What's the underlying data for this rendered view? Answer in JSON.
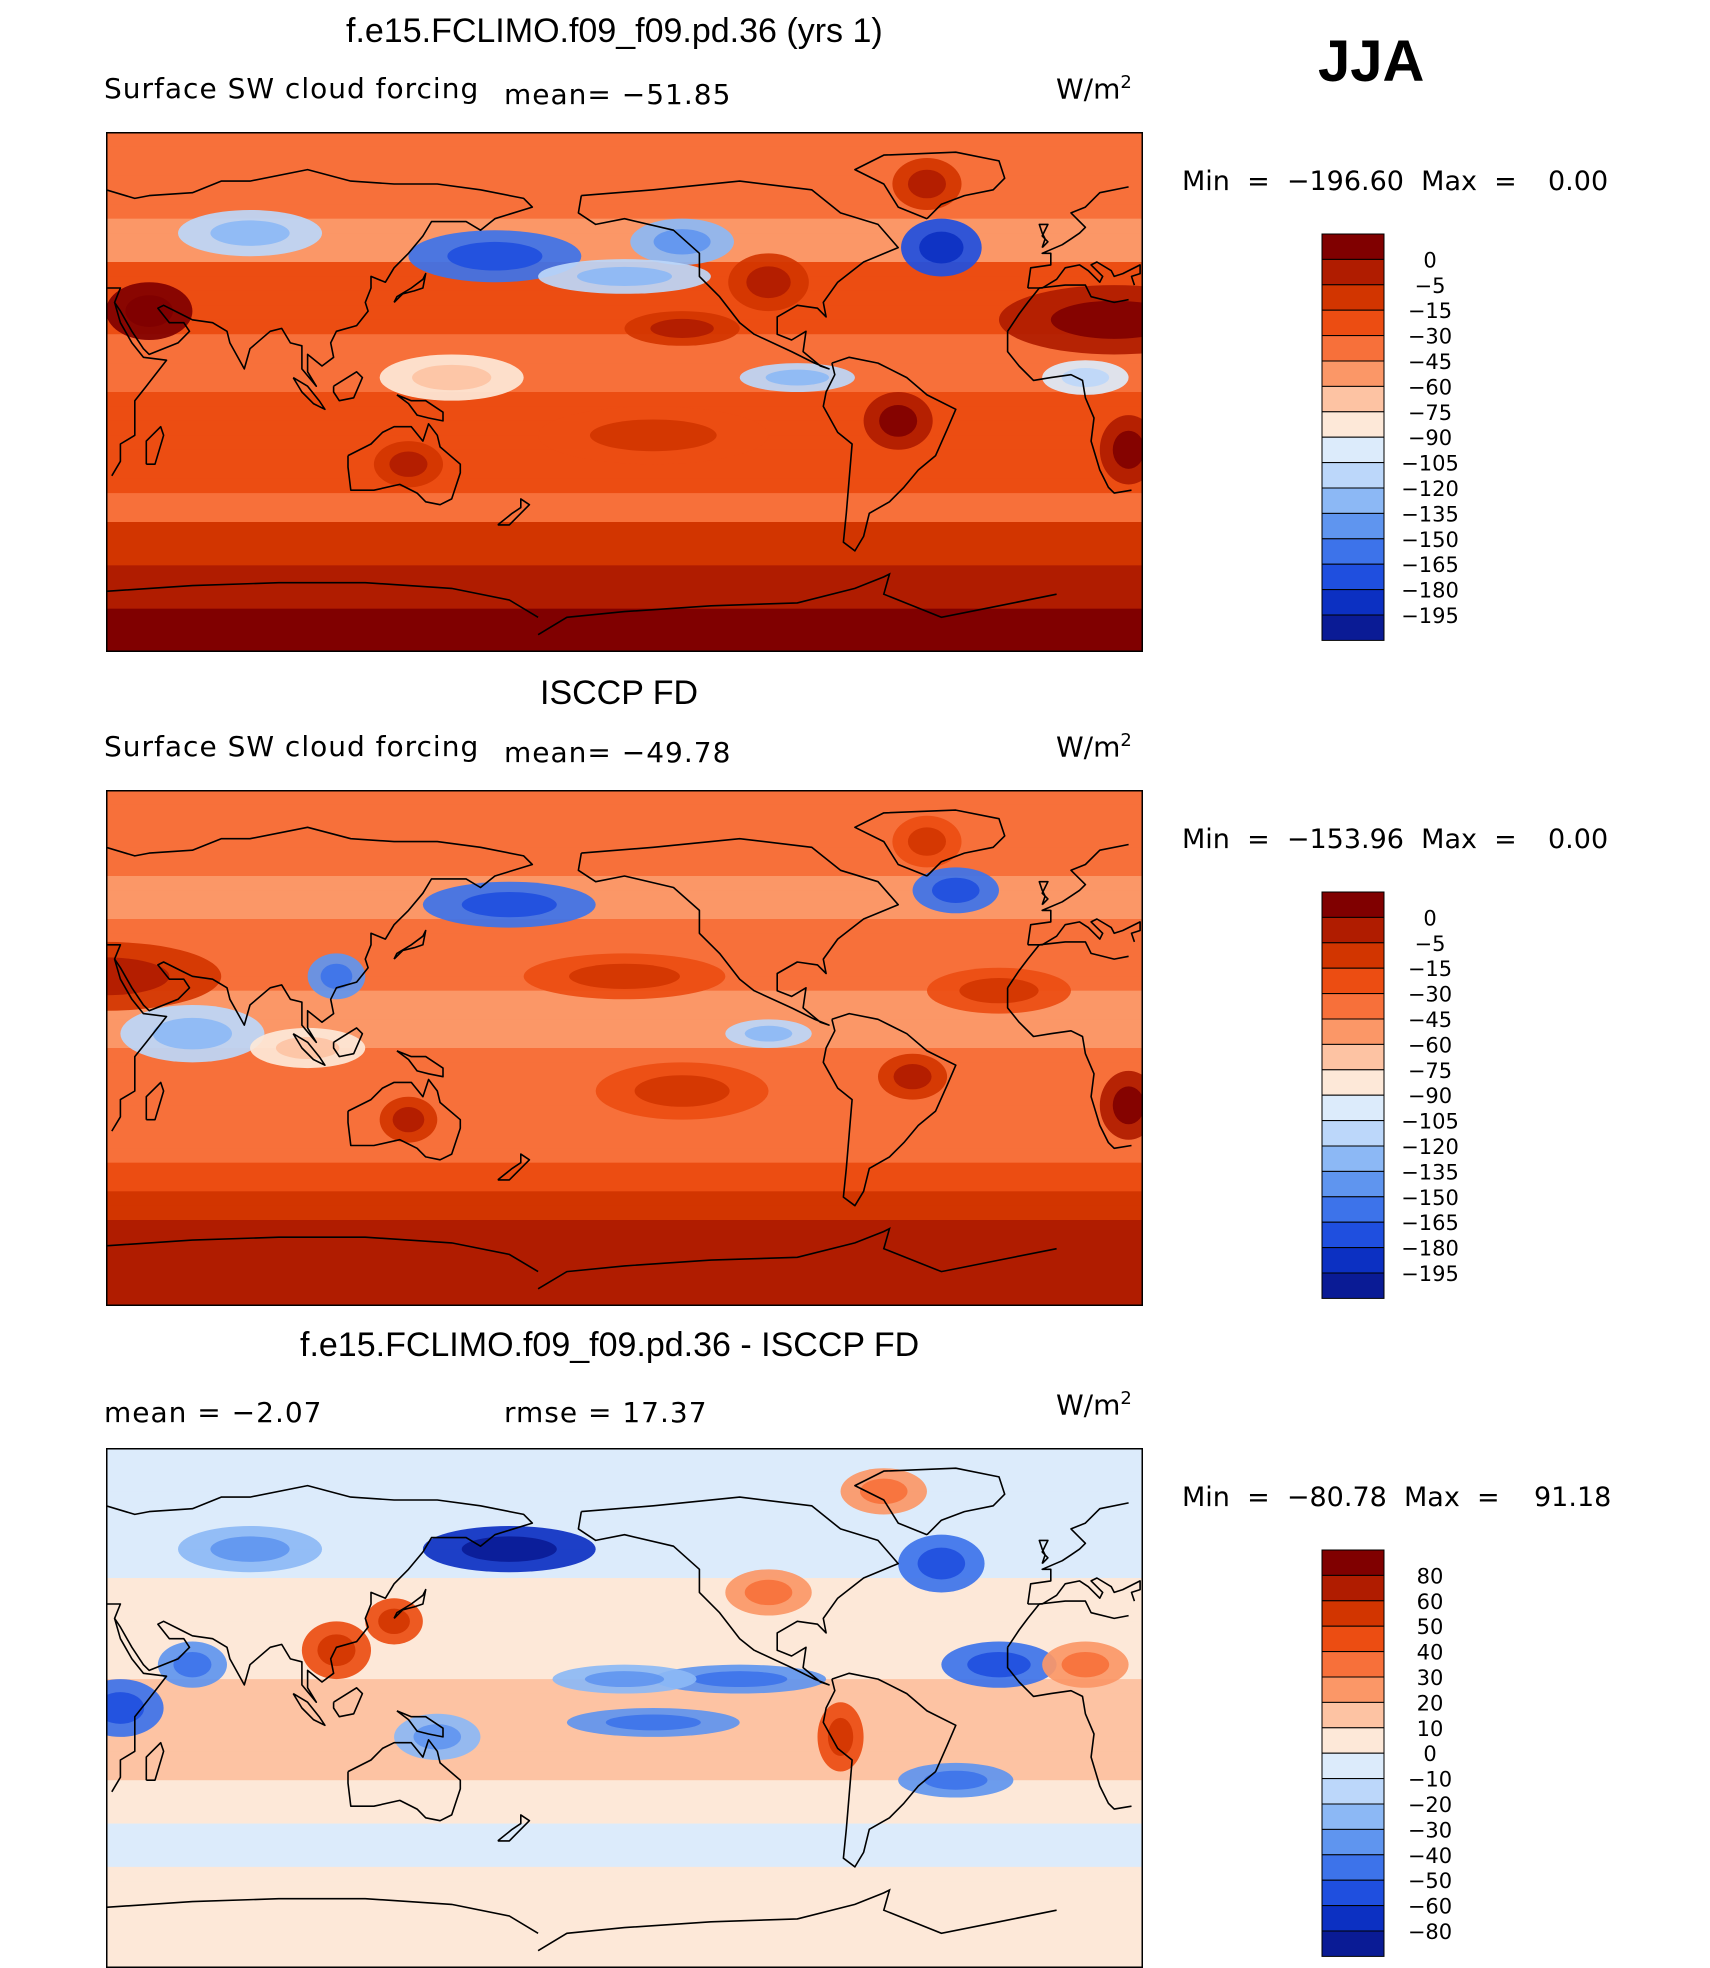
{
  "season": "JJA",
  "units_base": "W/m",
  "units_exp": "2",
  "panels": [
    {
      "title": "f.e15.FCLIMO.f09_f09.pd.36 (yrs 1)",
      "left_label": "Surface  SW  cloud  forcing",
      "mean_label": "mean=  −51.85",
      "min_label": "Min",
      "min_value": "=  −196.60",
      "max_label": "Max  =",
      "max_value": "0.00",
      "pattern": "model",
      "colors": [
        "#800000",
        "#b01c00",
        "#d23500",
        "#ec4d12",
        "#f7703a",
        "#fb9767",
        "#fdc3a3",
        "#fde8d8",
        "#dcebfb",
        "#bcd7fa",
        "#8cb8f5",
        "#5f95ef",
        "#3d73ea",
        "#1f4fdf",
        "#0c30c2",
        "#0a1b95"
      ],
      "levels": [
        "0",
        "−5",
        "−15",
        "−30",
        "−45",
        "−60",
        "−75",
        "−90",
        "−105",
        "−120",
        "−135",
        "−150",
        "−165",
        "−180",
        "−195"
      ]
    },
    {
      "title": "ISCCP FD",
      "left_label": "Surface  SW  cloud  forcing",
      "mean_label": "mean=  −49.78",
      "min_label": "Min",
      "min_value": "=  −153.96",
      "max_label": "Max  =",
      "max_value": "0.00",
      "pattern": "obs",
      "colors": [
        "#800000",
        "#b01c00",
        "#d23500",
        "#ec4d12",
        "#f7703a",
        "#fb9767",
        "#fdc3a3",
        "#fde8d8",
        "#dcebfb",
        "#bcd7fa",
        "#8cb8f5",
        "#5f95ef",
        "#3d73ea",
        "#1f4fdf",
        "#0c30c2",
        "#0a1b95"
      ],
      "levels": [
        "0",
        "−5",
        "−15",
        "−30",
        "−45",
        "−60",
        "−75",
        "−90",
        "−105",
        "−120",
        "−135",
        "−150",
        "−165",
        "−180",
        "−195"
      ]
    },
    {
      "title": "f.e15.FCLIMO.f09_f09.pd.36 - ISCCP FD",
      "left_label": "mean  =    −2.07",
      "mean_label": "rmse  =    17.37",
      "min_label": "Min",
      "min_value": "=  −80.78",
      "max_label": "Max  =",
      "max_value": "91.18",
      "pattern": "diff",
      "colors": [
        "#800000",
        "#b01c00",
        "#d23500",
        "#ec4d12",
        "#f7703a",
        "#fb9767",
        "#fdc3a3",
        "#fde8d8",
        "#dcebfb",
        "#bcd7fa",
        "#8cb8f5",
        "#5f95ef",
        "#3d73ea",
        "#1f4fdf",
        "#0c30c2",
        "#0a1b95"
      ],
      "levels": [
        "80",
        "60",
        "50",
        "40",
        "30",
        "20",
        "10",
        "0",
        "−10",
        "−20",
        "−30",
        "−40",
        "−50",
        "−60",
        "−80"
      ]
    }
  ]
}
